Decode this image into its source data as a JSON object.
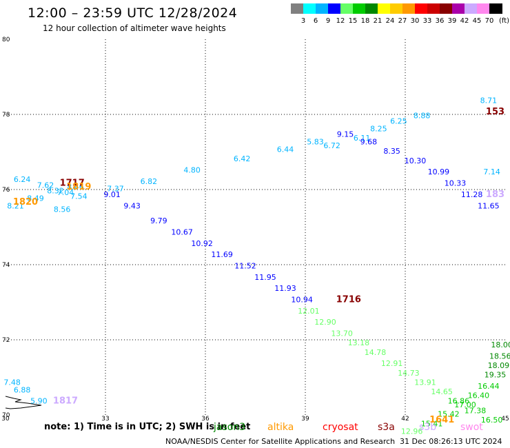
{
  "header": {
    "title": "12:00 – 23:59 UTC 12/28/2024",
    "subtitle": "12 hour collection of altimeter wave heights"
  },
  "colorbar": {
    "labels": [
      "3",
      "6",
      "9",
      "12",
      "15",
      "18",
      "21",
      "24",
      "27",
      "30",
      "33",
      "36",
      "39",
      "42",
      "45",
      "70"
    ],
    "colors": [
      "#808080",
      "#00ffff",
      "#00b4ff",
      "#0000ff",
      "#66ff66",
      "#00cc00",
      "#008800",
      "#ffff00",
      "#ffcc00",
      "#ff9900",
      "#ff0000",
      "#cc0000",
      "#880000",
      "#aa00aa",
      "#ccaaff",
      "#ff88ee",
      "#000000"
    ],
    "unit": "(ft)"
  },
  "legend": {
    "note": "note: 1) Time is in UTC; 2) SWH is in feet",
    "satellites": [
      {
        "name": "jason3",
        "color": "#008800"
      },
      {
        "name": "altika",
        "color": "#ff9900"
      },
      {
        "name": "cryosat",
        "color": "#ff0000"
      },
      {
        "name": "s3a",
        "color": "#880000"
      },
      {
        "name": "s3b",
        "color": "#ccaaff"
      },
      {
        "name": "swot",
        "color": "#ff88ee"
      }
    ]
  },
  "footer": {
    "source": "NOAA/NESDIS Center for Satellite Applications and Research",
    "timestamp": "31 Dec 08:26:13 UTC 2024"
  },
  "chart_data": {
    "type": "scatter",
    "xlim": [
      30,
      45
    ],
    "ylim": [
      70,
      80
    ],
    "x_ticks": [
      30,
      33,
      36,
      39,
      42,
      45
    ],
    "y_ticks": [
      70,
      72,
      74,
      76,
      78,
      80
    ],
    "grid": true,
    "points": [
      {
        "x": 44.6,
        "y": 76.4,
        "label": "7.14",
        "color": "#00b4ff"
      },
      {
        "x": 30.5,
        "y": 76.2,
        "label": "6.24",
        "color": "#00b4ff"
      },
      {
        "x": 31.2,
        "y": 76.05,
        "label": "7.62",
        "color": "#00b4ff"
      },
      {
        "x": 31.8,
        "y": 75.85,
        "label": "7.04",
        "color": "#00b4ff"
      },
      {
        "x": 32.2,
        "y": 75.75,
        "label": "7.54",
        "color": "#00b4ff"
      },
      {
        "x": 33.3,
        "y": 75.95,
        "label": "7.37",
        "color": "#00b4ff"
      },
      {
        "x": 34.3,
        "y": 76.15,
        "label": "6.82",
        "color": "#00b4ff"
      },
      {
        "x": 35.6,
        "y": 76.45,
        "label": "4.80",
        "color": "#00b4ff"
      },
      {
        "x": 37.1,
        "y": 76.75,
        "label": "6.42",
        "color": "#00b4ff"
      },
      {
        "x": 38.4,
        "y": 77.0,
        "label": "6.44",
        "color": "#00b4ff"
      },
      {
        "x": 39.3,
        "y": 77.2,
        "label": "5.83",
        "color": "#00b4ff"
      },
      {
        "x": 39.8,
        "y": 77.1,
        "label": "6.72",
        "color": "#00b4ff"
      },
      {
        "x": 40.7,
        "y": 77.3,
        "label": "6.11",
        "color": "#00b4ff"
      },
      {
        "x": 41.2,
        "y": 77.55,
        "label": "8.25",
        "color": "#00b4ff"
      },
      {
        "x": 41.8,
        "y": 77.75,
        "label": "6.25",
        "color": "#00b4ff"
      },
      {
        "x": 42.5,
        "y": 77.9,
        "label": "8.88",
        "color": "#00b4ff"
      },
      {
        "x": 44.5,
        "y": 78.3,
        "label": "8.71",
        "color": "#00b4ff"
      },
      {
        "x": 30.3,
        "y": 75.5,
        "label": "8.21",
        "color": "#00b4ff"
      },
      {
        "x": 30.9,
        "y": 75.7,
        "label": "8.49",
        "color": "#00b4ff"
      },
      {
        "x": 31.5,
        "y": 75.9,
        "label": "8.32",
        "color": "#00b4ff"
      },
      {
        "x": 32.1,
        "y": 76.0,
        "label": "8.46",
        "color": "#00b4ff"
      },
      {
        "x": 31.7,
        "y": 75.4,
        "label": "8.56",
        "color": "#00b4ff"
      },
      {
        "x": 30.2,
        "y": 70.8,
        "label": "7.48",
        "color": "#00b4ff"
      },
      {
        "x": 30.5,
        "y": 70.6,
        "label": "6.88",
        "color": "#00b4ff"
      },
      {
        "x": 31.0,
        "y": 70.3,
        "label": "5.90",
        "color": "#00b4ff"
      },
      {
        "x": 33.2,
        "y": 75.8,
        "label": "9.01",
        "color": "#0000ff"
      },
      {
        "x": 33.8,
        "y": 75.5,
        "label": "9.43",
        "color": "#0000ff"
      },
      {
        "x": 34.6,
        "y": 75.1,
        "label": "9.79",
        "color": "#0000ff"
      },
      {
        "x": 35.3,
        "y": 74.8,
        "label": "10.67",
        "color": "#0000ff"
      },
      {
        "x": 35.9,
        "y": 74.5,
        "label": "10.92",
        "color": "#0000ff"
      },
      {
        "x": 36.5,
        "y": 74.2,
        "label": "11.69",
        "color": "#0000ff"
      },
      {
        "x": 37.2,
        "y": 73.9,
        "label": "11.52",
        "color": "#0000ff"
      },
      {
        "x": 37.8,
        "y": 73.6,
        "label": "11.95",
        "color": "#0000ff"
      },
      {
        "x": 38.4,
        "y": 73.3,
        "label": "11.93",
        "color": "#0000ff"
      },
      {
        "x": 38.9,
        "y": 73.0,
        "label": "10.94",
        "color": "#0000ff"
      },
      {
        "x": 40.2,
        "y": 77.4,
        "label": "9.15",
        "color": "#0000ff"
      },
      {
        "x": 40.9,
        "y": 77.2,
        "label": "9.68",
        "color": "#0000ff"
      },
      {
        "x": 41.6,
        "y": 76.95,
        "label": "8.35",
        "color": "#0000ff"
      },
      {
        "x": 42.3,
        "y": 76.7,
        "label": "10.30",
        "color": "#0000ff"
      },
      {
        "x": 43.0,
        "y": 76.4,
        "label": "10.99",
        "color": "#0000ff"
      },
      {
        "x": 43.5,
        "y": 76.1,
        "label": "10.33",
        "color": "#0000ff"
      },
      {
        "x": 44.0,
        "y": 75.8,
        "label": "11.28",
        "color": "#0000ff"
      },
      {
        "x": 44.5,
        "y": 75.5,
        "label": "11.65",
        "color": "#0000ff"
      },
      {
        "x": 39.1,
        "y": 72.7,
        "label": "12.01",
        "color": "#66ff66"
      },
      {
        "x": 39.6,
        "y": 72.4,
        "label": "12.90",
        "color": "#66ff66"
      },
      {
        "x": 40.1,
        "y": 72.1,
        "label": "13.70",
        "color": "#66ff66"
      },
      {
        "x": 40.6,
        "y": 71.85,
        "label": "13.18",
        "color": "#66ff66"
      },
      {
        "x": 41.1,
        "y": 71.6,
        "label": "14.78",
        "color": "#66ff66"
      },
      {
        "x": 41.6,
        "y": 71.3,
        "label": "12.91",
        "color": "#66ff66"
      },
      {
        "x": 42.1,
        "y": 71.05,
        "label": "14.73",
        "color": "#66ff66"
      },
      {
        "x": 42.6,
        "y": 70.8,
        "label": "13.91",
        "color": "#66ff66"
      },
      {
        "x": 43.1,
        "y": 70.55,
        "label": "14.65",
        "color": "#66ff66"
      },
      {
        "x": 42.2,
        "y": 69.5,
        "label": "12.96",
        "color": "#66ff66"
      },
      {
        "x": 43.6,
        "y": 70.3,
        "label": "16.86",
        "color": "#00cc00"
      },
      {
        "x": 44.1,
        "y": 70.05,
        "label": "17.38",
        "color": "#00cc00"
      },
      {
        "x": 44.6,
        "y": 69.8,
        "label": "16.50",
        "color": "#00cc00"
      },
      {
        "x": 42.8,
        "y": 69.7,
        "label": "15.41",
        "color": "#00cc00"
      },
      {
        "x": 43.3,
        "y": 69.95,
        "label": "15.42",
        "color": "#00cc00"
      },
      {
        "x": 43.8,
        "y": 70.2,
        "label": "17.00",
        "color": "#00cc00"
      },
      {
        "x": 44.2,
        "y": 70.45,
        "label": "16.40",
        "color": "#00cc00"
      },
      {
        "x": 44.5,
        "y": 70.7,
        "label": "16.44",
        "color": "#00cc00"
      },
      {
        "x": 44.7,
        "y": 71.0,
        "label": "19.35",
        "color": "#008800"
      },
      {
        "x": 44.8,
        "y": 71.25,
        "label": "18.09",
        "color": "#008800"
      },
      {
        "x": 44.85,
        "y": 71.5,
        "label": "18.56",
        "color": "#008800"
      },
      {
        "x": 44.9,
        "y": 71.8,
        "label": "18.00",
        "color": "#008800"
      }
    ],
    "pass_labels": [
      {
        "x": 44.7,
        "y": 78.0,
        "label": "153",
        "color": "#880000"
      },
      {
        "x": 32.0,
        "y": 76.1,
        "label": "1717",
        "color": "#880000"
      },
      {
        "x": 32.2,
        "y": 76.0,
        "label": "1819",
        "color": "#ff9900"
      },
      {
        "x": 30.6,
        "y": 75.6,
        "label": "1820",
        "color": "#ff9900"
      },
      {
        "x": 40.3,
        "y": 73.0,
        "label": "1716",
        "color": "#880000"
      },
      {
        "x": 31.8,
        "y": 70.3,
        "label": "1817",
        "color": "#ccaaff"
      },
      {
        "x": 43.1,
        "y": 69.8,
        "label": "1641",
        "color": "#ff9900"
      },
      {
        "x": 44.7,
        "y": 75.8,
        "label": "183",
        "color": "#ccaaff"
      }
    ]
  }
}
